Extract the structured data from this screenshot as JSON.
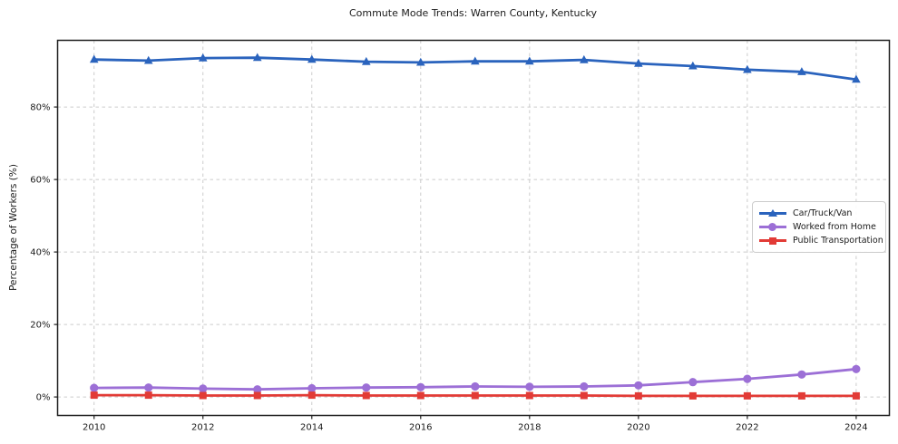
{
  "title": "Commute Mode Trends: Warren County, Kentucky",
  "chart_data": {
    "type": "line",
    "title": "Commute Mode Trends: Warren County, Kentucky",
    "xlabel": "",
    "ylabel": "Percentage of Workers (%)",
    "x": [
      2010,
      2011,
      2012,
      2013,
      2014,
      2015,
      2016,
      2017,
      2018,
      2019,
      2020,
      2021,
      2022,
      2023,
      2024
    ],
    "series": [
      {
        "name": "Car/Truck/Van",
        "marker": "triangle",
        "color": "#2a63bd",
        "values": [
          93.1,
          92.8,
          93.5,
          93.6,
          93.1,
          92.5,
          92.3,
          92.6,
          92.6,
          93.0,
          92.0,
          91.3,
          90.3,
          89.7,
          87.6
        ]
      },
      {
        "name": "Worked from Home",
        "marker": "circle",
        "color": "#9c6fd6",
        "values": [
          2.5,
          2.6,
          2.3,
          2.1,
          2.4,
          2.6,
          2.7,
          2.9,
          2.8,
          2.9,
          3.2,
          4.1,
          5.0,
          6.2,
          7.7
        ]
      },
      {
        "name": "Public Transportation",
        "marker": "square",
        "color": "#e23b36",
        "values": [
          0.5,
          0.5,
          0.4,
          0.4,
          0.5,
          0.4,
          0.4,
          0.4,
          0.4,
          0.4,
          0.3,
          0.3,
          0.3,
          0.3,
          0.3
        ]
      }
    ],
    "x_tick_values": [
      2010,
      2012,
      2014,
      2016,
      2018,
      2020,
      2022,
      2024
    ],
    "x_tick_labels": [
      "2010",
      "2012",
      "2014",
      "2016",
      "2018",
      "2020",
      "2022",
      "2024"
    ],
    "y_tick_values": [
      0,
      20,
      40,
      60,
      80
    ],
    "y_tick_labels": [
      "0%",
      "20%",
      "40%",
      "60%",
      "80%"
    ],
    "xlim": [
      2009.33,
      2024.61
    ],
    "ylim": [
      -5.1,
      98.4
    ],
    "grid": "dashed, both axes",
    "legend_position": "center-right"
  },
  "colors": {
    "background": "#ffffff",
    "grid": "#cccccc",
    "spine": "#1f1f1f",
    "text": "#1a1a1a",
    "legend_border": "#cccccc"
  }
}
